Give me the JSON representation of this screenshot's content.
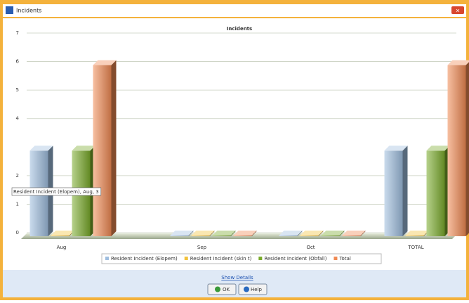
{
  "window": {
    "title": "Incidents"
  },
  "chart_data": {
    "type": "bar3d",
    "title": "Incidents",
    "categories": [
      "Aug",
      "Sep",
      "Oct",
      "TOTAL"
    ],
    "series": [
      {
        "name": "Resident Incident (Elopem)",
        "color": "#9fbedf",
        "values": [
          3,
          0,
          0,
          3
        ]
      },
      {
        "name": "Resident Incident (skin t)",
        "color": "#f2c23c",
        "values": [
          0,
          0,
          0,
          0
        ]
      },
      {
        "name": "Resident Incident (Obfall)",
        "color": "#7aab2c",
        "values": [
          3,
          0,
          0,
          3
        ]
      },
      {
        "name": "Total",
        "color": "#f08a54",
        "values": [
          6,
          0,
          0,
          6
        ]
      }
    ],
    "ylim": [
      0,
      7
    ],
    "yticks": [
      0,
      1,
      2,
      4,
      5,
      6,
      7
    ],
    "grid": true,
    "tooltip": "Resident Incident (Elopem), Aug, 3"
  },
  "footer": {
    "link": "Show Details",
    "buttons": [
      "OK",
      "Help"
    ]
  }
}
